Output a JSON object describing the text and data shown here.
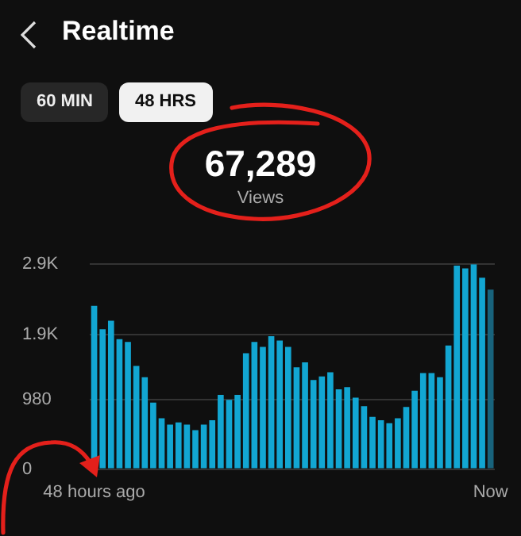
{
  "chart_data": {
    "type": "bar",
    "title": "Realtime",
    "annotations": [
      "60 MIN",
      "48 HRS",
      "67,289",
      "Views"
    ],
    "categories": [
      "48 hours ago",
      null,
      null,
      null,
      null,
      null,
      null,
      null,
      null,
      null,
      null,
      null,
      null,
      null,
      null,
      null,
      null,
      null,
      null,
      null,
      null,
      null,
      null,
      null,
      null,
      null,
      null,
      null,
      null,
      null,
      null,
      null,
      null,
      null,
      null,
      null,
      null,
      null,
      null,
      null,
      null,
      null,
      null,
      null,
      null,
      null,
      null,
      "Now"
    ],
    "values": [
      2310,
      1980,
      2100,
      1840,
      1800,
      1460,
      1300,
      940,
      720,
      630,
      660,
      630,
      550,
      630,
      690,
      1050,
      980,
      1050,
      1640,
      1800,
      1730,
      1880,
      1820,
      1730,
      1440,
      1510,
      1260,
      1310,
      1370,
      1130,
      1160,
      1010,
      890,
      740,
      690,
      650,
      720,
      880,
      1110,
      1360,
      1360,
      1300,
      1750,
      2880,
      2840,
      2900,
      2710,
      2540
    ],
    "colors": [
      "#12a6d2",
      "#12a6d2",
      "#12a6d2",
      "#12a6d2",
      "#12a6d2",
      "#12a6d2",
      "#12a6d2",
      "#12a6d2",
      "#12a6d2",
      "#12a6d2",
      "#12a6d2",
      "#12a6d2",
      "#12a6d2",
      "#12a6d2",
      "#12a6d2",
      "#12a6d2",
      "#12a6d2",
      "#12a6d2",
      "#12a6d2",
      "#12a6d2",
      "#12a6d2",
      "#12a6d2",
      "#12a6d2",
      "#12a6d2",
      "#12a6d2",
      "#12a6d2",
      "#12a6d2",
      "#12a6d2",
      "#12a6d2",
      "#12a6d2",
      "#12a6d2",
      "#12a6d2",
      "#12a6d2",
      "#12a6d2",
      "#12a6d2",
      "#12a6d2",
      "#12a6d2",
      "#12a6d2",
      "#12a6d2",
      "#12a6d2",
      "#12a6d2",
      "#12a6d2",
      "#12a6d2",
      "#12a6d2",
      "#12a6d2",
      "#12a6d2",
      "#12a6d2",
      "#18637c"
    ],
    "ylim": [
      0,
      2900
    ],
    "yticks": [
      0,
      980,
      {
        "value": 1900,
        "label": "1.9K"
      },
      {
        "value": 2900,
        "label": "2.9K"
      }
    ],
    "grid": "y"
  }
}
